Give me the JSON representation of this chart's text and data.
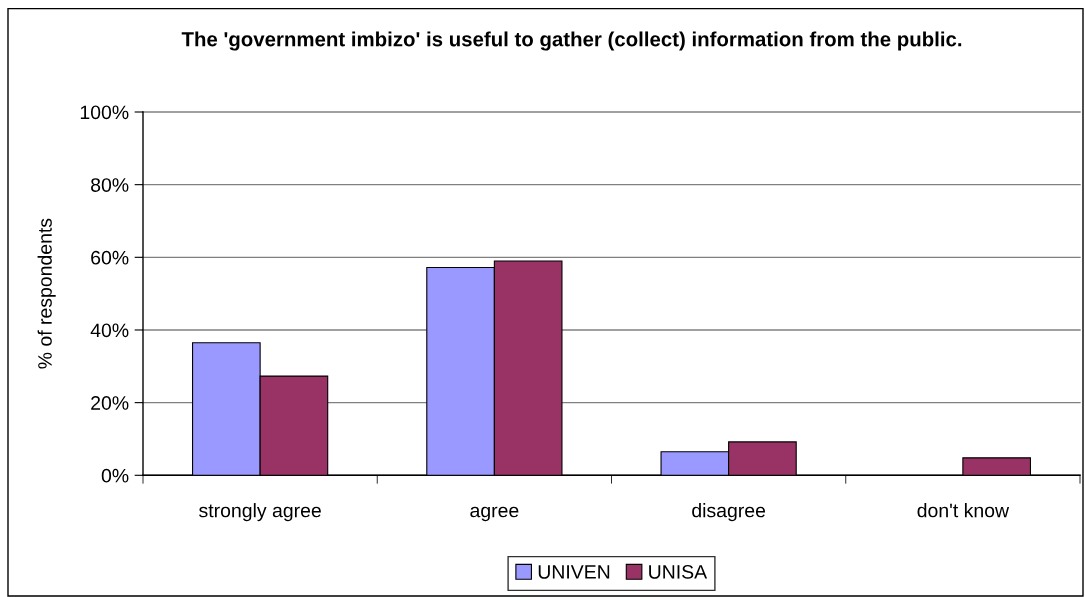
{
  "chart_data": {
    "type": "bar",
    "title": "The 'government imbizo' is useful to gather (collect) information from the public.",
    "ylabel": "% of respondents",
    "categories": [
      "strongly agree",
      "agree",
      "disagree",
      "don't know"
    ],
    "series": [
      {
        "name": "UNIVEN",
        "color": "#9999ff",
        "values": [
          36.5,
          57.2,
          6.5,
          null
        ]
      },
      {
        "name": "UNISA",
        "color": "#993366",
        "values": [
          27.3,
          59.0,
          9.2,
          4.8
        ]
      }
    ],
    "ylim": [
      0,
      100
    ],
    "yticks": [
      {
        "value": 0,
        "label": "0%"
      },
      {
        "value": 20,
        "label": "20%"
      },
      {
        "value": 40,
        "label": "40%"
      },
      {
        "value": 60,
        "label": "60%"
      },
      {
        "value": 80,
        "label": "80%"
      },
      {
        "value": 100,
        "label": "100%"
      }
    ],
    "grid": "y",
    "legend": "bottom"
  }
}
